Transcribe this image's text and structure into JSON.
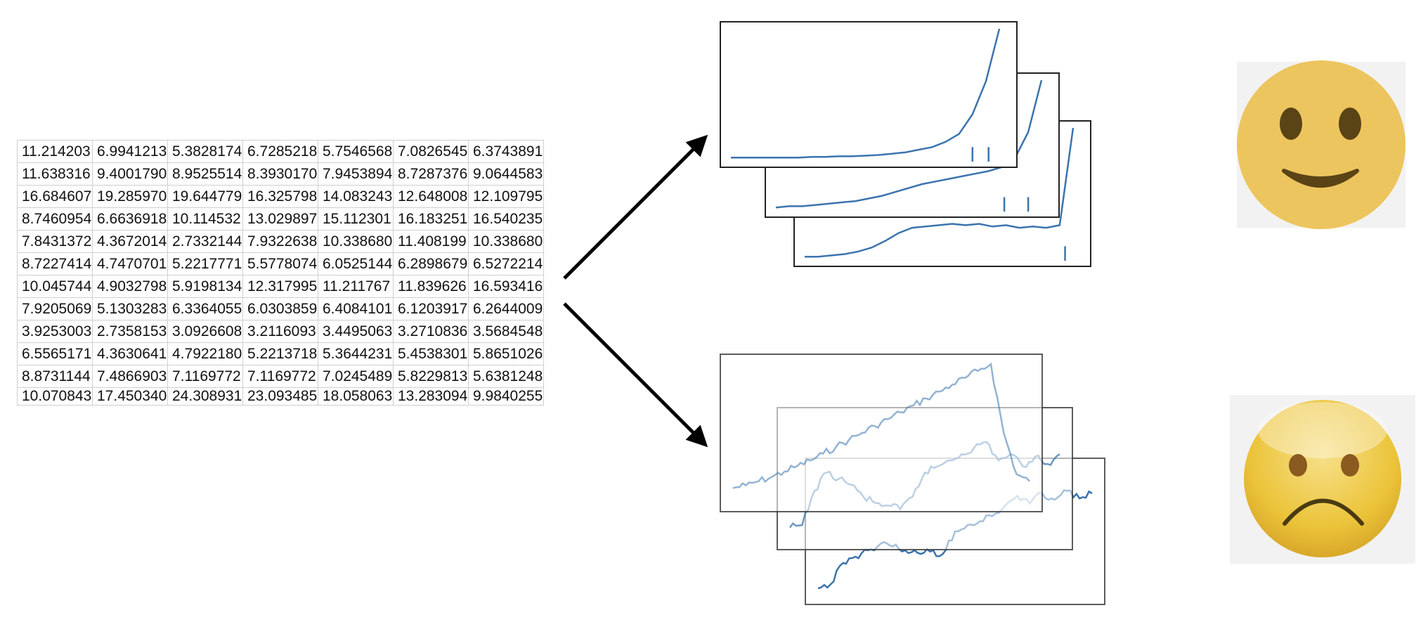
{
  "spreadsheet": {
    "rows": [
      [
        "11.214203",
        "6.9941213",
        "5.3828174",
        "6.7285218",
        "5.7546568",
        "7.0826545",
        "6.3743891"
      ],
      [
        "11.638316",
        "9.4001790",
        "8.9525514",
        "8.3930170",
        "7.9453894",
        "8.7287376",
        "9.0644583"
      ],
      [
        "16.684607",
        "19.285970",
        "19.644779",
        "16.325798",
        "14.083243",
        "12.648008",
        "12.109795"
      ],
      [
        "8.7460954",
        "6.6636918",
        "10.114532",
        "13.029897",
        "15.112301",
        "16.183251",
        "16.540235"
      ],
      [
        "7.8431372",
        "4.3672014",
        "2.7332144",
        "7.9322638",
        "10.338680",
        "11.408199",
        "10.338680"
      ],
      [
        "8.7227414",
        "4.7470701",
        "5.2217771",
        "5.5778074",
        "6.0525144",
        "6.2898679",
        "6.5272214"
      ],
      [
        "10.045744",
        "4.9032798",
        "5.9198134",
        "12.317995",
        "11.211767",
        "11.839626",
        "16.593416"
      ],
      [
        "7.9205069",
        "5.1303283",
        "6.3364055",
        "6.0303859",
        "6.4084101",
        "6.1203917",
        "6.2644009"
      ],
      [
        "3.9253003",
        "2.7358153",
        "3.0926608",
        "3.2116093",
        "3.4495063",
        "3.2710836",
        "3.5684548"
      ],
      [
        "6.5565171",
        "4.3630641",
        "4.7922180",
        "5.2213718",
        "5.3644231",
        "5.4538301",
        "5.8651026"
      ],
      [
        "8.8731144",
        "7.4866903",
        "7.1169772",
        "7.1169772",
        "7.0245489",
        "5.8229813",
        "5.6381248"
      ],
      [
        "10.070843",
        "17.450340",
        "24.308931",
        "23.093485",
        "18.058063",
        "13.283094",
        "9.9840255"
      ]
    ]
  },
  "arrows": [
    "arrow-to-good-charts",
    "arrow-to-bad-charts"
  ],
  "good_charts": [
    {
      "trend": [
        0.02,
        0.02,
        0.02,
        0.02,
        0.02,
        0.02,
        0.025,
        0.025,
        0.03,
        0.03,
        0.035,
        0.04,
        0.05,
        0.06,
        0.08,
        0.1,
        0.14,
        0.2,
        0.35,
        0.6,
        1.0
      ],
      "spikes": [
        0.9,
        0.96
      ]
    },
    {
      "trend": [
        0.02,
        0.03,
        0.03,
        0.04,
        0.05,
        0.06,
        0.07,
        0.09,
        0.11,
        0.14,
        0.17,
        0.2,
        0.22,
        0.24,
        0.26,
        0.28,
        0.3,
        0.33,
        0.4,
        0.6,
        1.0
      ],
      "spikes": [
        0.86,
        0.95
      ]
    },
    {
      "trend": [
        0.02,
        0.02,
        0.03,
        0.04,
        0.06,
        0.09,
        0.14,
        0.2,
        0.24,
        0.25,
        0.26,
        0.27,
        0.26,
        0.27,
        0.25,
        0.26,
        0.24,
        0.25,
        0.24,
        0.26,
        1.0
      ],
      "spikes": [
        0.97
      ]
    }
  ],
  "bad_charts": [
    {
      "trend": [
        0.1,
        0.12,
        0.15,
        0.18,
        0.22,
        0.26,
        0.3,
        0.35,
        0.4,
        0.45,
        0.5,
        0.55,
        0.6,
        0.65,
        0.7,
        0.75,
        0.8,
        0.85,
        0.9,
        0.95,
        1.0,
        0.5,
        0.2,
        0.15
      ]
    },
    {
      "trend": [
        0.1,
        0.12,
        0.4,
        0.55,
        0.5,
        0.45,
        0.35,
        0.3,
        0.28,
        0.25,
        0.35,
        0.55,
        0.6,
        0.65,
        0.7,
        0.75,
        0.8,
        0.65,
        0.7,
        0.6,
        0.68,
        0.62,
        0.7
      ]
    },
    {
      "trend": [
        0.05,
        0.08,
        0.25,
        0.3,
        0.35,
        0.4,
        0.38,
        0.35,
        0.33,
        0.34,
        0.32,
        0.5,
        0.55,
        0.58,
        0.62,
        0.7,
        0.78,
        0.72,
        0.8,
        0.75,
        0.82,
        0.76,
        0.8
      ]
    }
  ],
  "faces": [
    "happy-face",
    "sad-face"
  ],
  "colors": {
    "line": "#3b74ad",
    "arrow": "#000000",
    "happy_face": "#edc55e",
    "happy_features": "#5a4315",
    "sad_face": "#ecc43a",
    "sad_features": "#4a3a12",
    "face_background": "#f2f2f2"
  }
}
